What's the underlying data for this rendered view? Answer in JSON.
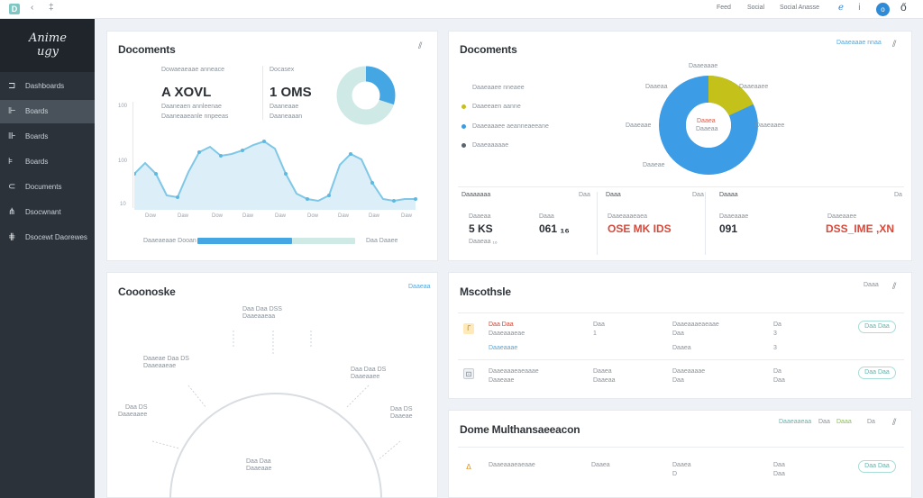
{
  "topbar": {
    "logo": "D",
    "icon1": "‹",
    "icon2": "‡",
    "links": [
      "Feed",
      "Social",
      "Social Anasse"
    ],
    "icon3": "ℯ",
    "icon4": "ⅰ",
    "avatar": "o",
    "icon5": "ő"
  },
  "sidebar": {
    "brand": "Anime ugy",
    "items": [
      {
        "icon": "⊐",
        "label": "Dashboards"
      },
      {
        "icon": "⊩",
        "label": "Boards"
      },
      {
        "icon": "⊪",
        "label": "Boards"
      },
      {
        "icon": "⊧",
        "label": "Boards"
      },
      {
        "icon": "⊂",
        "label": "Documents"
      },
      {
        "icon": "⋔",
        "label": "Dsocwnant"
      },
      {
        "icon": "⋕",
        "label": "Dsocewt Daorewes"
      }
    ]
  },
  "card1": {
    "title": "Docoments",
    "corner": "⫽",
    "stat1_label": "Dowaeaeaae anneace",
    "stat1_value": "A XOVL",
    "stat1_sub1": "Daaneaen annleenae",
    "stat1_sub2": "Daaneaaeanle nnpeeas",
    "stat2_label": "Docasex",
    "stat2_value": "1 OMS",
    "stat2_sub1": "Daaneaae",
    "stat2_sub2": "Daaneaaan",
    "y_labels": [
      "100",
      "100",
      "10"
    ],
    "x_labels": [
      "Dow",
      "Daw",
      "Dow",
      "Daw",
      "Daw",
      "Dow",
      "Daw",
      "Daw",
      "Daw"
    ],
    "progress_left": "Daaeaeaae Dooan",
    "progress_right": "Daa Daaee",
    "donut": {
      "a": 0.3,
      "colors": [
        "#44a7e3",
        "#cfe9e7"
      ]
    },
    "chart_color": "#7fc7e6",
    "progress_fill": 0.6
  },
  "card2": {
    "title": "Docoments",
    "link": "Daaeaaae nnaa",
    "corner": "⫽",
    "legend": [
      {
        "label": "Daaeaaee nneaee",
        "color": "#ffffff"
      },
      {
        "label": "Daaeeaen aanne",
        "color": "#c4c11a"
      },
      {
        "label": "Daaeaaaee aeanneaeeane",
        "color": "#3b9be3"
      },
      {
        "label": "Daaeaaaaae",
        "color": "#5a6570"
      }
    ],
    "pie": {
      "yellow": 0.18,
      "colors": [
        "#c4c11a",
        "#3d9ce6"
      ]
    },
    "pie_labels": [
      "Daaeaaae",
      "Daaeaa",
      "Daaeaaee",
      "Daaeaae",
      "Daaeaaee",
      "Daaeae"
    ],
    "pie_center": [
      "Daaea",
      "Daaeaa"
    ],
    "stats": [
      {
        "label": "Daaaaaaa",
        "sub": "Daaeaa",
        "value": "5 KS",
        "note": "Daaa",
        "note_value": "061 ₁₆",
        "accent": false,
        "head_right": "Daa"
      },
      {
        "label": "Daaa",
        "sub": "Daaeaaaeaea",
        "value": "OSE MK IDS",
        "note": "",
        "note_value": "",
        "accent": true,
        "head_right": "Daa"
      },
      {
        "label": "Daaaa",
        "sub": "Daaeaaae",
        "value": "091",
        "note": "Daaeaaee",
        "note_value": "DSS_IME ,XN",
        "accent": true,
        "head_right": "Da"
      }
    ],
    "note_extra": "Daaeaa ₁₆"
  },
  "card3": {
    "title": "Cooonoske",
    "link": "Daaeaa",
    "labels": [
      "Daa Daa DSS",
      "Daaeaaeaa",
      "Daaeae Daa DS",
      "Daaeaaeae",
      "Daa Daa DS",
      "Daaeaaee",
      "Daa DS",
      "Daaeaaee",
      "Daa DS",
      "Daaeae",
      "Daa Daa",
      "Daaeaae"
    ]
  },
  "card4": {
    "title": "Mscothsle",
    "link": "Daaa",
    "corner": "⫽",
    "rows": [
      {
        "icon": "ꓩ",
        "title": "Daa Daa",
        "sub": "Daaeaaaeae",
        "sub2": "Daaeaaae",
        "c2a": "Daa",
        "c2b": "1",
        "c3a": "Daaeaaaeaeaae",
        "c3b": "Daa",
        "c3c": "Daaea",
        "c4a": "Da",
        "c4b": "3",
        "btn": "Daa Daa"
      },
      {
        "icon": "⊡",
        "title": "Daaeaaaeaeaaae",
        "sub": "Daaeaae",
        "sub2": "",
        "c2a": "Daaea",
        "c2b": "Daaeaa",
        "c3a": "Daaeaaaae",
        "c3b": "Daa",
        "c3c": "",
        "c4a": "Da",
        "c4b": "Daa",
        "btn": "Daa Daa"
      }
    ]
  },
  "card5": {
    "title": "Dome Multhansaeeacon",
    "links": [
      "Daaeaaeaa",
      "Daa",
      "Daaa",
      "Da"
    ],
    "corner": "⫽",
    "row": {
      "icon": "ᐃ",
      "title": "Daaeaaaeaeaae",
      "c2": "Daaea",
      "c3a": "Daaea",
      "c3b": "D",
      "c4a": "Daa",
      "c4b": "Daa",
      "btn": "Daa Daa"
    }
  }
}
